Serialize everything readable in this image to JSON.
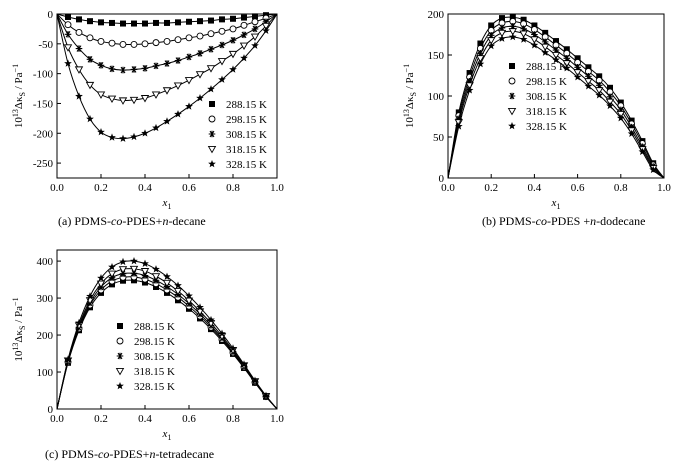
{
  "captions": [
    {
      "prefix": "(a) PDMS-",
      "italic1": "co",
      "middle": "-PDES+",
      "italic2": "n",
      "suffix": "-decane"
    },
    {
      "prefix": "(b) PDMS-",
      "italic1": "co",
      "middle": "-PDES +",
      "italic2": "n",
      "suffix": "-dodecane"
    },
    {
      "prefix": "(c) PDMS-",
      "italic1": "co",
      "middle": "-PDES+",
      "italic2": "n",
      "suffix": "-tetradecane"
    }
  ],
  "axis_text": {
    "xlabel_main": "x",
    "xlabel_sub": "1",
    "ylabel_prefix": "10",
    "ylabel_exp": "13",
    "ylabel_symbol": "Δκ",
    "ylabel_sub": "S",
    "ylabel_unit": " / Pa",
    "ylabel_unit_exp": "−1"
  },
  "colors": {
    "marker": "#000000",
    "line": "#000000",
    "axis": "#000000",
    "background": "#ffffff"
  },
  "chart_data": [
    {
      "type": "scatter",
      "title": "",
      "xlim": [
        0,
        1.0
      ],
      "ylim": [
        -275,
        0
      ],
      "xticks": [
        "0.0",
        "0.2",
        "0.4",
        "0.6",
        "0.8",
        "1.0"
      ],
      "yticks": [
        "0",
        "-50",
        "-100",
        "-150",
        "-200",
        "-250"
      ],
      "legend_position": "lower-right",
      "fit_lines": true,
      "x": [
        0,
        0.05,
        0.1,
        0.15,
        0.2,
        0.25,
        0.3,
        0.35,
        0.4,
        0.45,
        0.5,
        0.55,
        0.6,
        0.65,
        0.7,
        0.75,
        0.8,
        0.85,
        0.9,
        0.95,
        1.0
      ],
      "series": [
        {
          "name": "288.15 K",
          "marker": "square",
          "values": [
            0,
            -5,
            -9,
            -12,
            -14,
            -15,
            -16,
            -16,
            -16,
            -15,
            -15,
            -14,
            -13,
            -12,
            -11,
            -9,
            -8,
            -6,
            -4,
            -2,
            0
          ]
        },
        {
          "name": "298.15 K",
          "marker": "circle",
          "values": [
            0,
            -18,
            -31,
            -40,
            -46,
            -49,
            -51,
            -51,
            -50,
            -48,
            -46,
            -43,
            -40,
            -37,
            -33,
            -29,
            -25,
            -19,
            -13,
            -7,
            0
          ]
        },
        {
          "name": "308.15 K",
          "marker": "asterisk",
          "values": [
            0,
            -34,
            -58,
            -76,
            -86,
            -92,
            -94,
            -93,
            -91,
            -87,
            -83,
            -78,
            -72,
            -66,
            -59,
            -52,
            -44,
            -35,
            -25,
            -13,
            0
          ]
        },
        {
          "name": "318.15 K",
          "marker": "triangle-down",
          "values": [
            0,
            -56,
            -93,
            -119,
            -135,
            -142,
            -145,
            -144,
            -141,
            -135,
            -128,
            -120,
            -111,
            -101,
            -91,
            -79,
            -67,
            -53,
            -38,
            -20,
            0
          ]
        },
        {
          "name": "328.15 K",
          "marker": "star",
          "values": [
            0,
            -83,
            -138,
            -176,
            -198,
            -207,
            -209,
            -206,
            -200,
            -191,
            -180,
            -168,
            -155,
            -141,
            -126,
            -110,
            -93,
            -74,
            -53,
            -28,
            0
          ]
        }
      ]
    },
    {
      "type": "scatter",
      "title": "",
      "xlim": [
        0,
        1.0
      ],
      "ylim": [
        0,
        200
      ],
      "xticks": [
        "0.0",
        "0.2",
        "0.4",
        "0.6",
        "0.8",
        "1.0"
      ],
      "yticks": [
        "0",
        "50",
        "100",
        "150",
        "200"
      ],
      "legend_position": "center-right",
      "fit_lines": true,
      "x": [
        0,
        0.05,
        0.1,
        0.15,
        0.2,
        0.25,
        0.3,
        0.35,
        0.4,
        0.45,
        0.5,
        0.55,
        0.6,
        0.65,
        0.7,
        0.75,
        0.8,
        0.85,
        0.9,
        0.95,
        1.0
      ],
      "series": [
        {
          "name": "288.15 K",
          "marker": "square",
          "values": [
            0,
            80,
            128,
            164,
            186,
            195,
            196,
            193,
            186,
            177,
            167,
            157,
            146,
            135,
            124,
            110,
            92,
            70,
            45,
            18,
            0
          ]
        },
        {
          "name": "298.15 K",
          "marker": "circle",
          "values": [
            0,
            76,
            123,
            158,
            180,
            189,
            191,
            188,
            181,
            172,
            162,
            152,
            141,
            130,
            119,
            105,
            88,
            66,
            42,
            16,
            0
          ]
        },
        {
          "name": "308.15 K",
          "marker": "asterisk",
          "values": [
            0,
            72,
            118,
            152,
            174,
            183,
            185,
            182,
            175,
            166,
            156,
            146,
            135,
            124,
            113,
            99,
            83,
            62,
            38,
            14,
            0
          ]
        },
        {
          "name": "318.15 K",
          "marker": "triangle-down",
          "values": [
            0,
            68,
            113,
            146,
            168,
            177,
            179,
            176,
            169,
            160,
            150,
            140,
            129,
            118,
            107,
            93,
            78,
            58,
            35,
            12,
            0
          ]
        },
        {
          "name": "328.15 K",
          "marker": "star",
          "values": [
            0,
            63,
            107,
            139,
            161,
            170,
            172,
            169,
            162,
            153,
            144,
            134,
            123,
            112,
            101,
            88,
            73,
            54,
            32,
            10,
            0
          ]
        }
      ]
    },
    {
      "type": "scatter",
      "title": "",
      "xlim": [
        0,
        1.0
      ],
      "ylim": [
        0,
        430
      ],
      "xticks": [
        "0.0",
        "0.2",
        "0.4",
        "0.6",
        "0.8",
        "1.0"
      ],
      "yticks": [
        "0",
        "100",
        "200",
        "300",
        "400"
      ],
      "legend_position": "center",
      "fit_lines": true,
      "x": [
        0,
        0.05,
        0.1,
        0.15,
        0.2,
        0.25,
        0.3,
        0.35,
        0.4,
        0.45,
        0.5,
        0.55,
        0.6,
        0.65,
        0.7,
        0.75,
        0.8,
        0.85,
        0.9,
        0.95,
        1.0
      ],
      "series": [
        {
          "name": "288.15 K",
          "marker": "square",
          "values": [
            0,
            125,
            213,
            275,
            314,
            337,
            347,
            348,
            342,
            330,
            314,
            294,
            271,
            245,
            216,
            184,
            149,
            111,
            71,
            33,
            0
          ]
        },
        {
          "name": "298.15 K",
          "marker": "circle",
          "values": [
            0,
            127,
            217,
            281,
            322,
            346,
            356,
            357,
            351,
            339,
            322,
            302,
            278,
            251,
            221,
            188,
            152,
            113,
            72,
            34,
            0
          ]
        },
        {
          "name": "308.15 K",
          "marker": "asterisk",
          "values": [
            0,
            129,
            221,
            287,
            330,
            355,
            366,
            367,
            361,
            348,
            331,
            310,
            285,
            257,
            226,
            192,
            155,
            115,
            73,
            34,
            0
          ]
        },
        {
          "name": "318.15 K",
          "marker": "triangle-down",
          "values": [
            0,
            131,
            226,
            294,
            339,
            366,
            378,
            379,
            373,
            359,
            341,
            319,
            293,
            264,
            232,
            197,
            159,
            118,
            75,
            35,
            0
          ]
        },
        {
          "name": "328.15 K",
          "marker": "star",
          "values": [
            0,
            134,
            233,
            305,
            354,
            384,
            398,
            400,
            393,
            378,
            358,
            334,
            306,
            275,
            241,
            204,
            164,
            121,
            77,
            36,
            0
          ]
        }
      ]
    }
  ]
}
